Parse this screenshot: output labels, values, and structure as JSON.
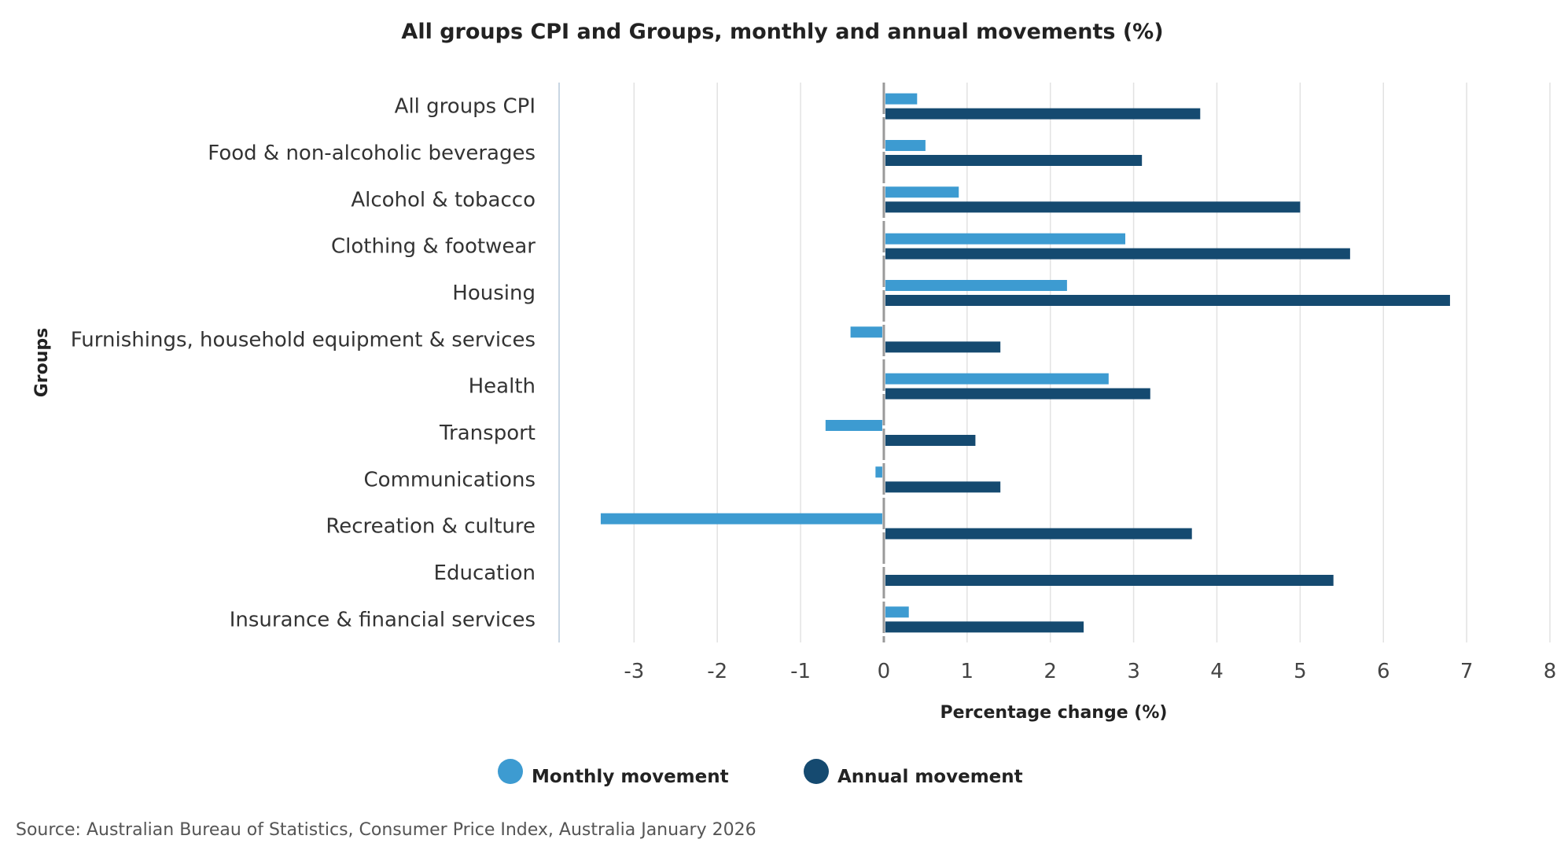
{
  "chart_data": {
    "type": "bar",
    "orientation": "horizontal",
    "title": "All groups CPI and Groups, monthly and annual movements (%)",
    "xlabel": "Percentage change (%)",
    "ylabel": "Groups",
    "xlim": [
      -3.9,
      8
    ],
    "xticks": [
      "-3",
      "-2",
      "-1",
      "0",
      "1",
      "2",
      "3",
      "4",
      "5",
      "6",
      "7",
      "8"
    ],
    "grid": true,
    "legend_position": "bottom",
    "categories": [
      "All groups CPI",
      "Food & non-alcoholic beverages",
      "Alcohol & tobacco",
      "Clothing & footwear",
      "Housing",
      "Furnishings, household equipment & services",
      "Health",
      "Transport",
      "Communications",
      "Recreation & culture",
      "Education",
      "Insurance & financial services"
    ],
    "series": [
      {
        "name": "Monthly movement",
        "color": "#3d9bd1",
        "values": [
          0.4,
          0.5,
          0.9,
          2.9,
          2.2,
          -0.4,
          2.7,
          -0.7,
          -0.1,
          -3.4,
          0.0,
          0.3
        ]
      },
      {
        "name": "Annual movement",
        "color": "#154a70",
        "values": [
          3.8,
          3.1,
          5.0,
          5.6,
          6.8,
          1.4,
          3.2,
          1.1,
          1.4,
          3.7,
          5.4,
          2.4
        ]
      }
    ]
  },
  "source": "Source: Australian Bureau of Statistics, Consumer Price Index, Australia January 2026"
}
